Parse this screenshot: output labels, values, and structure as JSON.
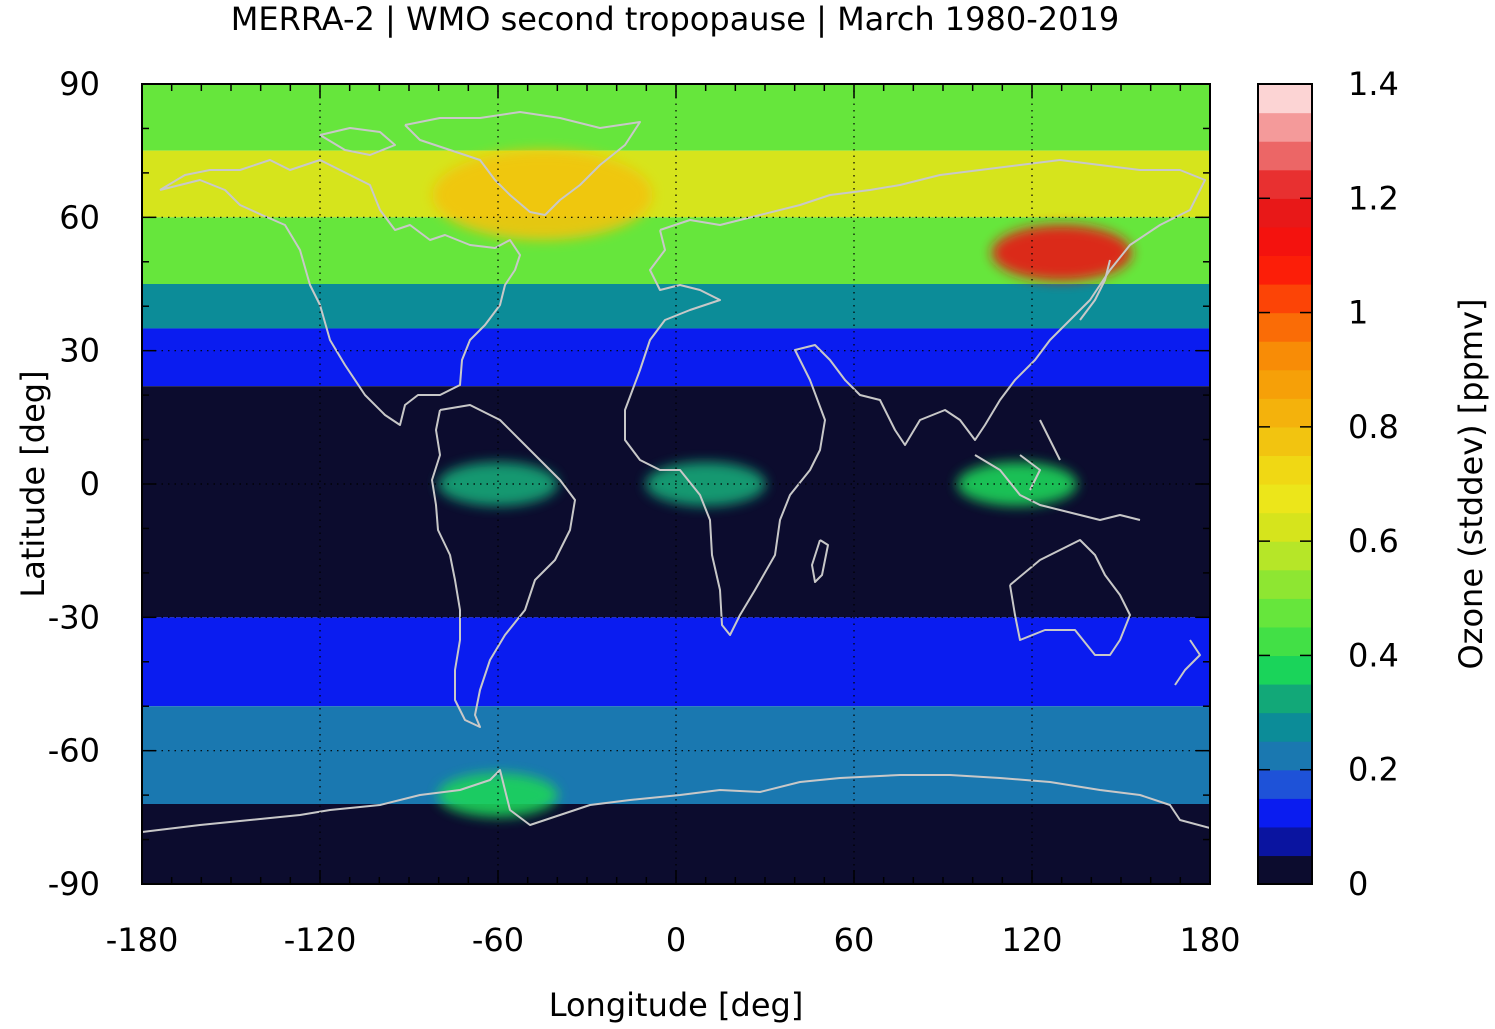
{
  "title": "MERRA-2 | WMO second tropopause | March 1980-2019",
  "xlabel": "Longitude [deg]",
  "ylabel": "Latitude [deg]",
  "colorbar": {
    "label": "Ozone (stddev) [ppmv]",
    "min": 0,
    "max": 1.4,
    "tick_values": [
      0,
      0.2,
      0.4,
      0.6,
      0.8,
      1,
      1.2,
      1.4
    ],
    "tick_labels": [
      "0",
      "0.2",
      "0.4",
      "0.6",
      "0.8",
      "1",
      "1.2",
      "1.4"
    ],
    "levels": 28,
    "colors": [
      "#0c0c2e",
      "#0a14a0",
      "#0a1cf0",
      "#1e52d8",
      "#1a78b0",
      "#0c8c98",
      "#12a878",
      "#1ad45a",
      "#42e046",
      "#66e63c",
      "#8ee632",
      "#b6e628",
      "#d6e41c",
      "#ece61a",
      "#f0d814",
      "#f2c410",
      "#f4b20c",
      "#f6a008",
      "#f88c06",
      "#fa6c06",
      "#fc4406",
      "#fc1e08",
      "#f4120e",
      "#e81818",
      "#e83030",
      "#ec6666",
      "#f49a9a",
      "#fcd4d4"
    ]
  },
  "chart_data": {
    "type": "heatmap",
    "title": "MERRA-2 | WMO second tropopause | March 1980-2019",
    "xlabel": "Longitude [deg]",
    "ylabel": "Latitude [deg]",
    "xlim": [
      -180,
      180
    ],
    "ylim": [
      -90,
      90
    ],
    "x_ticks": [
      "-180",
      "-120",
      "-60",
      "0",
      "60",
      "120",
      "180"
    ],
    "y_ticks": [
      "90",
      "60",
      "30",
      "0",
      "-30",
      "-60",
      "-90"
    ],
    "x_tick_values": [
      -180,
      -120,
      -60,
      0,
      60,
      120,
      180
    ],
    "y_tick_values": [
      90,
      60,
      30,
      0,
      -30,
      -60,
      -90
    ],
    "grid": true,
    "basemap": "coastlines",
    "zonal_band_values": [
      {
        "lat_range": [
          75,
          90
        ],
        "value": 0.45
      },
      {
        "lat_range": [
          60,
          75
        ],
        "value": 0.6
      },
      {
        "lat_range": [
          45,
          60
        ],
        "value": 0.45
      },
      {
        "lat_range": [
          35,
          45
        ],
        "value": 0.25
      },
      {
        "lat_range": [
          22,
          35
        ],
        "value": 0.12
      },
      {
        "lat_range": [
          -30,
          22
        ],
        "value": 0.02
      },
      {
        "lat_range": [
          -50,
          -30
        ],
        "value": 0.12
      },
      {
        "lat_range": [
          -72,
          -50
        ],
        "value": 0.2
      },
      {
        "lat_range": [
          -90,
          -72
        ],
        "value": 0.02
      }
    ],
    "features": [
      {
        "name": "Greenland / North Atlantic maximum",
        "lon": -45,
        "lat": 65,
        "value": 0.75
      },
      {
        "name": "East Asia maximum",
        "lon": 130,
        "lat": 52,
        "value": 1.15
      },
      {
        "name": "Equatorial Africa patch",
        "lon": 10,
        "lat": 0,
        "value": 0.3
      },
      {
        "name": "Amazon patch",
        "lon": -60,
        "lat": 0,
        "value": 0.3
      },
      {
        "name": "Maritime Continent patch",
        "lon": 115,
        "lat": 0,
        "value": 0.35
      },
      {
        "name": "Antarctic Peninsula patch",
        "lon": -60,
        "lat": -70,
        "value": 0.35
      }
    ],
    "colorbar_range": [
      0,
      1.4
    ],
    "colorbar_label": "Ozone (stddev) [ppmv]"
  }
}
